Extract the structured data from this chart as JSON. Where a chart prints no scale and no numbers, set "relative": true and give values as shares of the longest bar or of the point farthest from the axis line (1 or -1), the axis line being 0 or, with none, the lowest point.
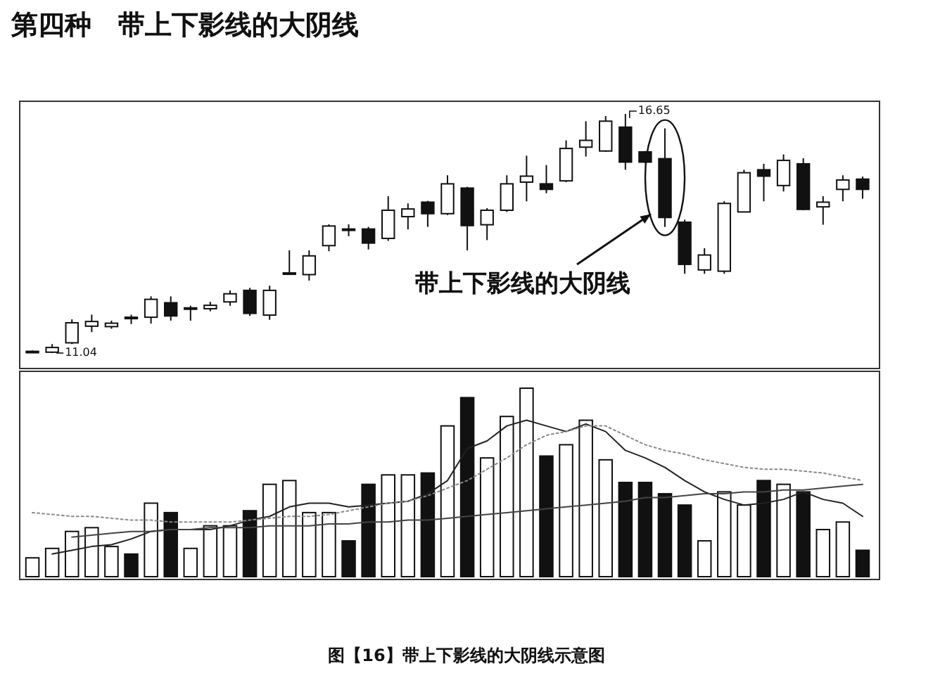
{
  "chart_data": [
    {
      "type": "candlestick",
      "title": "第四种　带上下影线的大阴线",
      "categories": [
        null,
        null,
        null,
        null,
        null,
        null,
        null,
        null,
        null,
        null,
        null,
        null,
        null,
        null,
        null,
        null,
        null,
        null,
        null,
        null,
        null,
        null,
        null,
        null,
        null,
        null,
        null,
        null,
        null,
        null,
        null,
        null,
        null,
        null,
        null,
        null,
        null,
        null,
        null,
        null,
        null,
        null,
        null
      ],
      "ohlc": [
        [
          11.08,
          11.1,
          11.06,
          11.08
        ],
        [
          11.06,
          11.25,
          11.04,
          11.17
        ],
        [
          11.28,
          11.83,
          11.25,
          11.75
        ],
        [
          11.67,
          11.94,
          11.53,
          11.78
        ],
        [
          11.66,
          11.8,
          11.61,
          11.74
        ],
        [
          11.88,
          11.94,
          11.72,
          11.86
        ],
        [
          11.88,
          12.37,
          11.73,
          12.3
        ],
        [
          12.22,
          12.37,
          11.8,
          11.91
        ],
        [
          12.08,
          12.15,
          11.8,
          12.1
        ],
        [
          12.08,
          12.24,
          12.02,
          12.16
        ],
        [
          12.24,
          12.51,
          12.15,
          12.43
        ],
        [
          12.51,
          12.57,
          11.91,
          11.97
        ],
        [
          11.93,
          12.62,
          11.82,
          12.51
        ],
        [
          12.9,
          13.45,
          12.88,
          12.92
        ],
        [
          12.88,
          13.45,
          12.74,
          13.32
        ],
        [
          13.56,
          14.06,
          13.43,
          14.02
        ],
        [
          13.95,
          14.06,
          13.78,
          13.94
        ],
        [
          13.95,
          14.0,
          13.47,
          13.62
        ],
        [
          13.73,
          14.72,
          13.67,
          14.39
        ],
        [
          14.24,
          14.55,
          13.94,
          14.42
        ],
        [
          14.58,
          14.61,
          14.0,
          14.31
        ],
        [
          14.31,
          15.21,
          14.28,
          15.01
        ],
        [
          14.91,
          14.94,
          13.45,
          14.03
        ],
        [
          14.05,
          14.44,
          13.69,
          14.39
        ],
        [
          14.39,
          15.21,
          14.35,
          15.01
        ],
        [
          15.05,
          15.67,
          14.6,
          15.19
        ],
        [
          15.01,
          15.45,
          14.79,
          14.88
        ],
        [
          15.08,
          16.03,
          15.05,
          15.84
        ],
        [
          15.87,
          16.48,
          15.65,
          16.03
        ],
        [
          15.78,
          16.6,
          15.76,
          16.48
        ],
        [
          16.34,
          16.65,
          15.34,
          15.52
        ],
        [
          15.76,
          15.78,
          15.49,
          15.52
        ],
        [
          15.6,
          16.31,
          14.0,
          14.22
        ],
        [
          14.11,
          14.17,
          12.9,
          13.12
        ],
        [
          12.99,
          13.5,
          12.9,
          13.34
        ],
        [
          12.96,
          14.6,
          12.9,
          14.55
        ],
        [
          14.35,
          15.34,
          14.35,
          15.27
        ],
        [
          15.34,
          15.48,
          14.6,
          15.19
        ],
        [
          14.97,
          15.7,
          14.83,
          15.56
        ],
        [
          15.48,
          15.61,
          14.39,
          14.41
        ],
        [
          14.47,
          14.72,
          14.05,
          14.58
        ],
        [
          14.88,
          15.21,
          14.6,
          15.1
        ],
        [
          15.12,
          15.18,
          14.66,
          14.88
        ]
      ],
      "annotations": [
        "带上下影线的大阴线",
        "16.65",
        "11.04"
      ]
    },
    {
      "type": "bar",
      "relative": true,
      "categories": [
        null,
        null,
        null,
        null,
        null,
        null,
        null,
        null,
        null,
        null,
        null,
        null,
        null,
        null,
        null,
        null,
        null,
        null,
        null,
        null,
        null,
        null,
        null,
        null,
        null,
        null,
        null,
        null,
        null,
        null,
        null,
        null,
        null,
        null,
        null,
        null,
        null,
        null,
        null,
        null,
        null,
        null,
        null
      ],
      "series": [
        {
          "type": "bar",
          "values": [
            0.1,
            0.15,
            0.24,
            0.26,
            0.16,
            0.12,
            0.39,
            0.34,
            0.15,
            0.27,
            0.27,
            0.35,
            0.49,
            0.51,
            0.34,
            0.34,
            0.19,
            0.49,
            0.54,
            0.54,
            0.55,
            0.8,
            0.95,
            0.63,
            0.85,
            1,
            0.64,
            0.7,
            0.83,
            0.62,
            0.5,
            0.5,
            0.44,
            0.38,
            0.19,
            0.45,
            0.38,
            0.51,
            0.49,
            0.45,
            0.25,
            0.29,
            0.14
          ],
          "colors": [
            "#ffffff",
            "#ffffff",
            "#ffffff",
            "#ffffff",
            "#ffffff",
            "#111111",
            "#ffffff",
            "#111111",
            "#ffffff",
            "#ffffff",
            "#ffffff",
            "#111111",
            "#ffffff",
            "#ffffff",
            "#ffffff",
            "#ffffff",
            "#111111",
            "#111111",
            "#ffffff",
            "#ffffff",
            "#111111",
            "#ffffff",
            "#111111",
            "#ffffff",
            "#ffffff",
            "#ffffff",
            "#111111",
            "#ffffff",
            "#ffffff",
            "#ffffff",
            "#111111",
            "#111111",
            "#111111",
            "#111111",
            "#ffffff",
            "#ffffff",
            "#ffffff",
            "#111111",
            "#ffffff",
            "#111111",
            "#ffffff",
            "#ffffff",
            "#111111"
          ]
        },
        {
          "type": "line",
          "color": "#222222",
          "line_style": "solid",
          "values": [
            null,
            0.12,
            0.14,
            0.16,
            0.17,
            0.2,
            0.24,
            0.25,
            0.25,
            0.25,
            0.27,
            0.3,
            0.32,
            0.37,
            0.39,
            0.39,
            0.37,
            0.38,
            0.39,
            0.4,
            0.44,
            0.51,
            0.68,
            0.72,
            0.8,
            0.83,
            0.8,
            0.77,
            0.81,
            0.77,
            0.67,
            0.63,
            0.58,
            0.51,
            0.45,
            0.41,
            0.38,
            0.39,
            0.41,
            0.45,
            0.41,
            0.39,
            0.32
          ]
        },
        {
          "type": "line",
          "color": "#888888",
          "line_style": "dotted",
          "values": [
            0.34,
            0.33,
            0.32,
            0.32,
            0.31,
            0.3,
            0.3,
            0.29,
            0.29,
            0.29,
            0.29,
            0.3,
            0.31,
            0.32,
            0.32,
            0.33,
            0.35,
            0.37,
            0.39,
            0.4,
            0.43,
            0.47,
            0.51,
            0.57,
            0.63,
            0.7,
            0.75,
            0.77,
            0.8,
            0.8,
            0.75,
            0.7,
            0.67,
            0.65,
            0.62,
            0.6,
            0.58,
            0.57,
            0.57,
            0.56,
            0.55,
            0.53,
            0.51
          ]
        },
        {
          "type": "line",
          "color": "#444444",
          "line_style": "solid",
          "values": [
            null,
            null,
            0.21,
            0.22,
            0.23,
            0.24,
            0.24,
            0.25,
            0.25,
            0.26,
            0.26,
            0.26,
            0.27,
            0.27,
            0.27,
            0.28,
            0.28,
            0.29,
            0.29,
            0.3,
            0.3,
            0.31,
            0.32,
            0.33,
            0.34,
            0.35,
            0.36,
            0.37,
            0.38,
            0.39,
            0.4,
            0.42,
            0.42,
            0.43,
            0.44,
            0.44,
            0.45,
            0.45,
            0.46,
            0.46,
            0.47,
            0.48,
            0.49
          ]
        }
      ],
      "annotations": [
        "图【16】带上下影线的大阴线示意图"
      ]
    }
  ]
}
